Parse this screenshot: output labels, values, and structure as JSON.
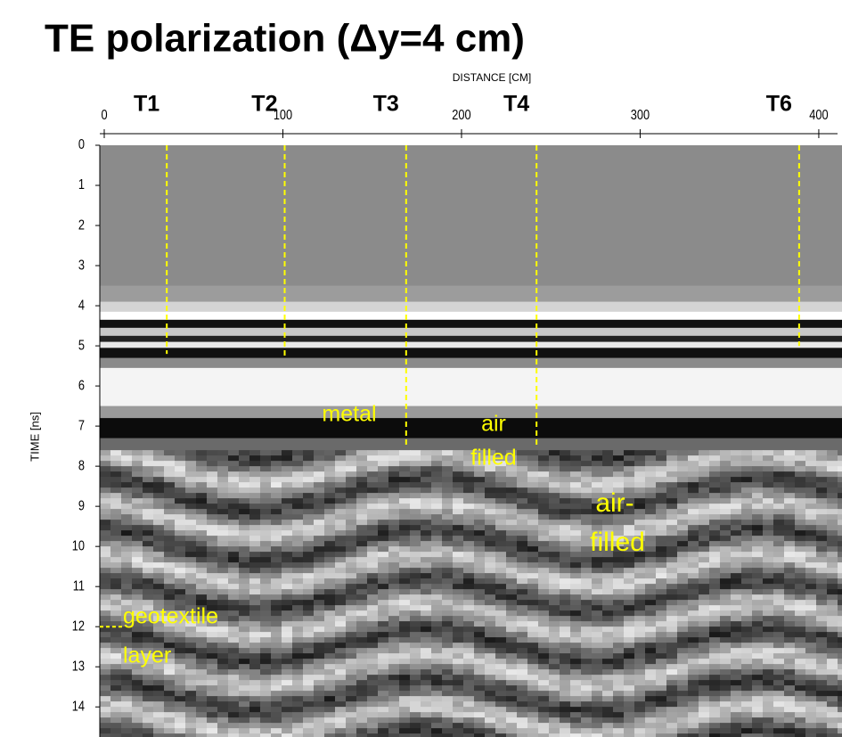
{
  "chart_data": {
    "type": "radargram",
    "title": "TE polarization (Δy=4 cm)",
    "x_label": "DISTANCE [CM]",
    "y_label": "TIME [ns]",
    "xlim": [
      -2.5,
      413
    ],
    "xticks": [
      0,
      100,
      200,
      300,
      400
    ],
    "ylim": [
      0,
      14.75
    ],
    "yticks": [
      0,
      1,
      2,
      3,
      4,
      5,
      6,
      7,
      8,
      9,
      10,
      11,
      12,
      13,
      14
    ],
    "traces": [
      {
        "label": "T1",
        "x": 35,
        "t_end": 5.2,
        "color": "#ffff00"
      },
      {
        "label": "T2",
        "x": 101,
        "t_end": 5.3,
        "color": "#ffff00"
      },
      {
        "label": "T3",
        "x": 169,
        "t_end": 7.5,
        "color": "#ffff00"
      },
      {
        "label": "T4",
        "x": 242,
        "t_end": 7.5,
        "color": "#ffff00"
      },
      {
        "label": "T6",
        "x": 389,
        "t_end": 5.0,
        "color": "#ffff00"
      }
    ],
    "annotations": [
      [
        "metal"
      ],
      [
        "air",
        "filled"
      ],
      [
        "air-",
        "filled"
      ],
      [
        "geotextile",
        "layer"
      ]
    ]
  }
}
